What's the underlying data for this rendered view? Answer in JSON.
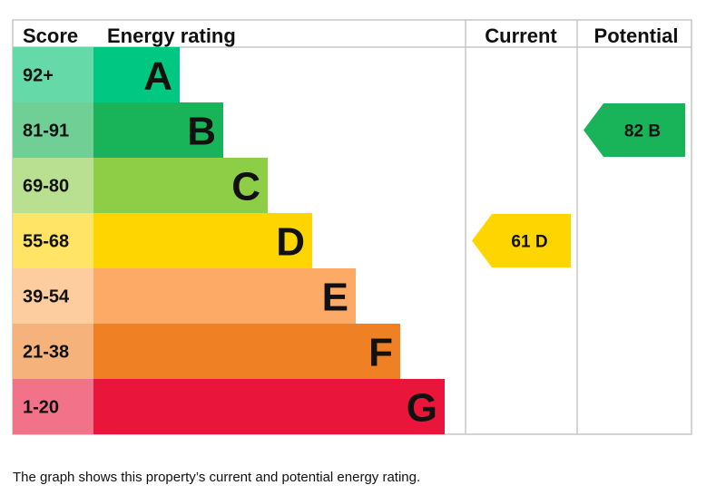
{
  "chart_data": {
    "type": "bar",
    "headers": {
      "score": "Score",
      "rating": "Energy rating",
      "current": "Current",
      "potential": "Potential"
    },
    "bands": [
      {
        "score": "92+",
        "letter": "A",
        "min": 92,
        "max": 100,
        "color": "#00c781",
        "score_bg": "#66d9a9"
      },
      {
        "score": "81-91",
        "letter": "B",
        "min": 81,
        "max": 91,
        "color": "#19b459",
        "score_bg": "#6fcf95"
      },
      {
        "score": "69-80",
        "letter": "C",
        "min": 69,
        "max": 80,
        "color": "#8dce46",
        "score_bg": "#b9e090"
      },
      {
        "score": "55-68",
        "letter": "D",
        "min": 55,
        "max": 68,
        "color": "#ffd500",
        "score_bg": "#ffe466"
      },
      {
        "score": "39-54",
        "letter": "E",
        "min": 39,
        "max": 54,
        "color": "#fcaa65",
        "score_bg": "#fdcc9f"
      },
      {
        "score": "21-38",
        "letter": "F",
        "min": 21,
        "max": 38,
        "color": "#ef8023",
        "score_bg": "#f5b27b"
      },
      {
        "score": "1-20",
        "letter": "G",
        "min": 1,
        "max": 20,
        "color": "#e9153b",
        "score_bg": "#f27389"
      }
    ],
    "current": {
      "value": 61,
      "letter": "D",
      "label": "61  D",
      "color": "#ffd500"
    },
    "potential": {
      "value": 82,
      "letter": "B",
      "label": "82  B",
      "color": "#19b459"
    }
  },
  "caption": "The graph shows this property’s current and potential energy rating."
}
